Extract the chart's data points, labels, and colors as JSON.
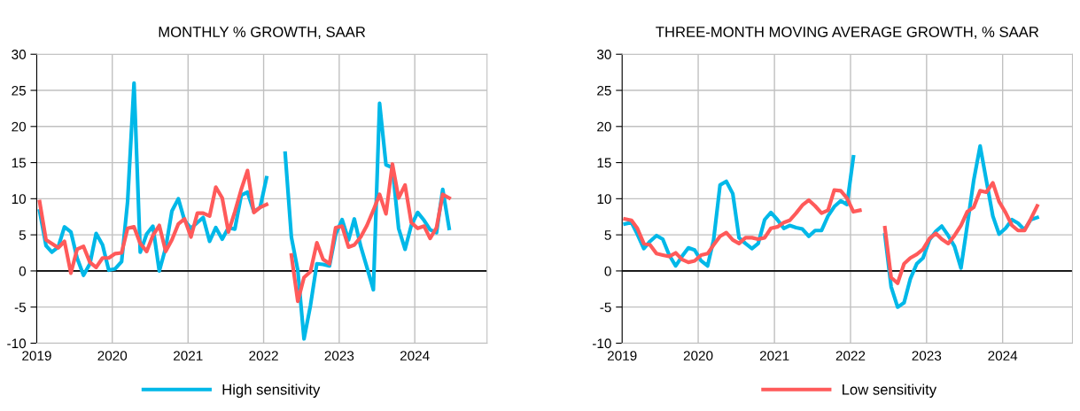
{
  "chart_data": [
    {
      "type": "line",
      "title": "MONTHLY % GROWTH, SAAR",
      "legend": "bottom",
      "grid": true,
      "line_style": "solid",
      "marker": "none",
      "x": [
        "2019-01-15",
        "2019-02-15",
        "2019-03-15",
        "2019-04-15",
        "2019-05-15",
        "2019-06-15",
        "2019-07-15",
        "2019-08-15",
        "2019-09-15",
        "2019-10-15",
        "2019-11-15",
        "2019-12-15",
        "2020-01-15",
        "2020-02-15",
        "2020-03-15",
        "2020-04-15",
        "2020-05-15",
        "2020-06-15",
        "2020-07-15",
        "2020-08-15",
        "2020-09-15",
        "2020-10-15",
        "2020-11-15",
        "2020-12-15",
        "2021-01-15",
        "2021-02-15",
        "2021-03-15",
        "2021-04-15",
        "2021-05-15",
        "2021-06-15",
        "2021-07-15",
        "2021-08-15",
        "2021-09-15",
        "2021-10-15",
        "2021-11-15",
        "2021-12-15",
        "2022-01-15",
        "2022-02-15",
        "2022-03-15",
        "2022-04-15",
        "2022-05-15",
        "2022-06-15",
        "2022-07-15",
        "2022-08-15",
        "2022-09-15",
        "2022-10-15",
        "2022-11-15",
        "2022-12-15",
        "2023-01-15",
        "2023-02-15",
        "2023-03-15",
        "2023-04-15",
        "2023-05-15",
        "2023-06-15",
        "2023-07-15",
        "2023-08-15",
        "2023-09-15",
        "2023-10-15",
        "2023-11-15",
        "2023-12-15",
        "2024-01-15",
        "2024-02-15",
        "2024-03-15",
        "2024-04-15",
        "2024-05-15",
        "2024-06-15"
      ],
      "xlim": [
        "2019-01-01",
        "2024-12-15"
      ],
      "xticks": [
        "2019",
        "2020",
        "2021",
        "2022",
        "2023",
        "2024"
      ],
      "ylim": [
        -10,
        30
      ],
      "yticks": [
        -10,
        -5,
        0,
        5,
        10,
        15,
        20,
        25,
        30
      ],
      "series": [
        {
          "name": "High sensitivity",
          "color": "#00b8e8",
          "values": [
            8.3,
            3.5,
            2.6,
            3.3,
            6.1,
            5.4,
            1.8,
            -0.6,
            1.0,
            5.2,
            3.6,
            0.1,
            0.3,
            1.3,
            9.6,
            26.0,
            2.6,
            5.1,
            6.2,
            0.0,
            3.2,
            8.3,
            10.0,
            7.0,
            5.9,
            6.7,
            7.4,
            4.1,
            6.0,
            4.4,
            6.0,
            5.8,
            10.5,
            10.9,
            8.2,
            8.8,
            12.9,
            null,
            null,
            16.3,
            4.7,
            0.1,
            -9.4,
            -4.8,
            1.0,
            0.9,
            0.7,
            5.1,
            7.1,
            4.3,
            7.2,
            3.4,
            0.5,
            -2.6,
            23.2,
            14.7,
            14.3,
            5.9,
            3.0,
            6.3,
            8.1,
            7.0,
            5.7,
            5.3,
            11.3,
            5.9
          ]
        },
        {
          "name": "Low sensitivity",
          "color": "#ff5a5a",
          "values": [
            9.6,
            4.3,
            3.8,
            3.2,
            4.1,
            -0.3,
            3.0,
            3.4,
            1.2,
            0.5,
            1.8,
            1.8,
            2.4,
            2.5,
            5.9,
            6.1,
            3.8,
            2.7,
            4.9,
            6.3,
            2.7,
            4.3,
            6.5,
            7.2,
            4.7,
            8.0,
            8.0,
            7.6,
            11.6,
            10.1,
            5.4,
            8.2,
            11.3,
            13.9,
            8.1,
            8.8,
            9.2,
            null,
            null,
            null,
            2.2,
            -4.2,
            -0.9,
            -0.1,
            3.9,
            1.6,
            1.0,
            6.0,
            6.2,
            3.3,
            3.6,
            4.7,
            6.3,
            8.4,
            10.6,
            7.9,
            14.8,
            10.1,
            11.9,
            6.7,
            5.9,
            6.2,
            4.5,
            6.0,
            10.6,
            10.1
          ]
        }
      ]
    },
    {
      "type": "line",
      "title": "THREE-MONTH MOVING AVERAGE GROWTH, % SAAR",
      "legend": "bottom",
      "grid": true,
      "line_style": "solid",
      "marker": "none",
      "x": [
        "2019-01-15",
        "2019-02-15",
        "2019-03-15",
        "2019-04-15",
        "2019-05-15",
        "2019-06-15",
        "2019-07-15",
        "2019-08-15",
        "2019-09-15",
        "2019-10-15",
        "2019-11-15",
        "2019-12-15",
        "2020-01-15",
        "2020-02-15",
        "2020-03-15",
        "2020-04-15",
        "2020-05-15",
        "2020-06-15",
        "2020-07-15",
        "2020-08-15",
        "2020-09-15",
        "2020-10-15",
        "2020-11-15",
        "2020-12-15",
        "2021-01-15",
        "2021-02-15",
        "2021-03-15",
        "2021-04-15",
        "2021-05-15",
        "2021-06-15",
        "2021-07-15",
        "2021-08-15",
        "2021-09-15",
        "2021-10-15",
        "2021-11-15",
        "2021-12-15",
        "2022-01-15",
        "2022-02-15",
        "2022-03-15",
        "2022-04-15",
        "2022-05-15",
        "2022-06-15",
        "2022-07-15",
        "2022-08-15",
        "2022-09-15",
        "2022-10-15",
        "2022-11-15",
        "2022-12-15",
        "2023-01-15",
        "2023-02-15",
        "2023-03-15",
        "2023-04-15",
        "2023-05-15",
        "2023-06-15",
        "2023-07-15",
        "2023-08-15",
        "2023-09-15",
        "2023-10-15",
        "2023-11-15",
        "2023-12-15",
        "2024-01-15",
        "2024-02-15",
        "2024-03-15",
        "2024-04-15",
        "2024-05-15",
        "2024-06-15"
      ],
      "xlim": [
        "2019-01-01",
        "2024-12-01"
      ],
      "xticks": [
        "2019",
        "2020",
        "2021",
        "2022",
        "2023",
        "2024"
      ],
      "ylim": [
        -10,
        30
      ],
      "yticks": [
        -10,
        -5,
        0,
        5,
        10,
        15,
        20,
        25,
        30
      ],
      "series": [
        {
          "name": "High sensitivity",
          "color": "#00b8e8",
          "values": [
            6.5,
            6.7,
            5.1,
            3.1,
            4.1,
            4.9,
            4.4,
            2.2,
            0.7,
            2.0,
            3.2,
            2.9,
            1.4,
            0.7,
            4.3,
            11.9,
            12.4,
            10.7,
            4.6,
            3.8,
            3.1,
            3.8,
            7.1,
            8.1,
            7.1,
            5.9,
            6.3,
            6.0,
            5.8,
            4.8,
            5.6,
            5.6,
            7.6,
            8.9,
            9.7,
            9.2,
            15.8,
            null,
            null,
            null,
            null,
            5.0,
            -2.2,
            -5.0,
            -4.4,
            -1.1,
            1.0,
            1.8,
            4.3,
            5.5,
            6.2,
            4.9,
            3.4,
            0.4,
            6.3,
            12.5,
            17.3,
            12.5,
            7.6,
            5.1,
            5.9,
            7.1,
            6.6,
            5.7,
            7.1,
            7.4
          ]
        },
        {
          "name": "Low sensitivity",
          "color": "#ff5a5a",
          "values": [
            7.2,
            7.0,
            5.9,
            3.8,
            3.6,
            2.4,
            2.2,
            2.0,
            2.5,
            1.6,
            1.2,
            1.4,
            2.2,
            2.4,
            3.6,
            4.8,
            5.3,
            4.3,
            3.8,
            4.6,
            4.6,
            4.4,
            4.6,
            5.9,
            6.1,
            6.7,
            7.0,
            8.0,
            9.1,
            9.8,
            9.0,
            8.0,
            8.4,
            11.2,
            11.1,
            10.1,
            8.2,
            8.4,
            null,
            null,
            null,
            6.0,
            -0.9,
            -1.7,
            1.0,
            1.8,
            2.3,
            3.0,
            4.5,
            5.2,
            4.4,
            3.8,
            4.9,
            6.3,
            8.2,
            8.8,
            11.1,
            10.9,
            12.2,
            9.6,
            8.1,
            6.3,
            5.6,
            5.6,
            7.2,
            9.0
          ]
        }
      ]
    }
  ]
}
